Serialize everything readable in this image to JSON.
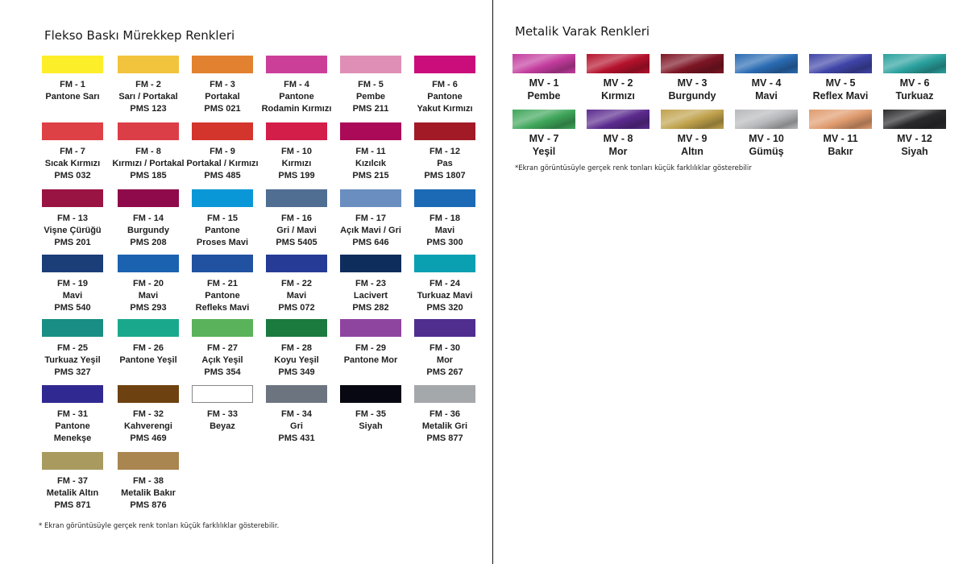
{
  "left_title": "Flekso Baskı Mürekkep Renkleri",
  "right_title": "Metalik Varak Renkleri",
  "left_note": "* Ekran görüntüsüyle gerçek renk tonları küçük farklılıklar gösterebilir.",
  "right_note": "*Ekran görüntüsüyle gerçek renk tonları küçük farklılıklar gösterebilir",
  "flexo_inks": [
    {
      "code": "FM - 1",
      "name": "Pantone Sarı",
      "pms": "",
      "color": "#fdee2a"
    },
    {
      "code": "FM - 2",
      "name": "Sarı / Portakal",
      "pms": "PMS 123",
      "color": "#f2c33c"
    },
    {
      "code": "FM - 3",
      "name": "Portakal",
      "pms": "PMS 021",
      "color": "#e2812f"
    },
    {
      "code": "FM - 4",
      "name": "Pantone",
      "name2": "Rodamin Kırmızı",
      "color": "#cc3f98"
    },
    {
      "code": "FM - 5",
      "name": "Pembe",
      "pms": "PMS 211",
      "color": "#df8fb6"
    },
    {
      "code": "FM - 6",
      "name": "Pantone",
      "name2": "Yakut Kırmızı",
      "color": "#ca0d7b"
    },
    {
      "code": "FM - 7",
      "name": "Sıcak Kırmızı",
      "pms": "PMS 032",
      "color": "#de4145"
    },
    {
      "code": "FM - 8",
      "name": "Kırmızı / Portakal",
      "pms": "PMS 185",
      "color": "#dc3e48"
    },
    {
      "code": "FM - 9",
      "name": "Portakal / Kırmızı",
      "pms": "PMS 485",
      "color": "#d3342c"
    },
    {
      "code": "FM - 10",
      "name": "Kırmızı",
      "pms": "PMS 199",
      "color": "#d41e4a"
    },
    {
      "code": "FM - 11",
      "name": "Kızılcık",
      "pms": "PMS 215",
      "color": "#ab0a58"
    },
    {
      "code": "FM - 12",
      "name": "Pas",
      "pms": "PMS 1807",
      "color": "#a11a26"
    },
    {
      "code": "FM - 13",
      "name": "Vişne Çürüğü",
      "pms": "PMS 201",
      "color": "#991442"
    },
    {
      "code": "FM - 14",
      "name": "Burgundy",
      "pms": "PMS 208",
      "color": "#8f0a4a"
    },
    {
      "code": "FM - 15",
      "name": "Pantone",
      "name2": "Proses Mavi",
      "color": "#0a97d7"
    },
    {
      "code": "FM - 16",
      "name": "Gri / Mavi",
      "pms": "PMS 5405",
      "color": "#4f6e91"
    },
    {
      "code": "FM - 17",
      "name": "Açık Mavi / Gri",
      "pms": "PMS 646",
      "color": "#6a8ebf"
    },
    {
      "code": "FM - 18",
      "name": "Mavi",
      "pms": "PMS 300",
      "color": "#1c6ab5"
    },
    {
      "code": "FM - 19",
      "name": "Mavi",
      "pms": "PMS 540",
      "color": "#1b3d78"
    },
    {
      "code": "FM - 20",
      "name": "Mavi",
      "pms": "PMS 293",
      "color": "#1b62b0"
    },
    {
      "code": "FM - 21",
      "name": "Pantone",
      "name2": "Refleks Mavi",
      "color": "#2152a1"
    },
    {
      "code": "FM - 22",
      "name": "Mavi",
      "pms": "PMS 072",
      "color": "#263b95"
    },
    {
      "code": "FM - 23",
      "name": "Lacivert",
      "pms": "PMS 282",
      "color": "#0f2d5c"
    },
    {
      "code": "FM - 24",
      "name": "Turkuaz Mavi",
      "pms": "PMS 320",
      "color": "#0aa0b2"
    },
    {
      "code": "FM - 25",
      "name": "Turkuaz Yeşil",
      "pms": "PMS 327",
      "color": "#188e85"
    },
    {
      "code": "FM - 26",
      "name": "Pantone Yeşil",
      "pms": "",
      "color": "#1aa88d"
    },
    {
      "code": "FM - 27",
      "name": "Açık Yeşil",
      "pms": "PMS 354",
      "color": "#5ab25a"
    },
    {
      "code": "FM - 28",
      "name": "Koyu Yeşil",
      "pms": "PMS 349",
      "color": "#1b7a3e"
    },
    {
      "code": "FM - 29",
      "name": "Pantone Mor",
      "pms": "",
      "color": "#8e45a0"
    },
    {
      "code": "FM - 30",
      "name": "Mor",
      "pms": "PMS 267",
      "color": "#4f2e90"
    },
    {
      "code": "FM - 31",
      "name": "Pantone",
      "name2": "Menekşe",
      "color": "#302991"
    },
    {
      "code": "FM - 32",
      "name": "Kahverengi",
      "pms": "PMS 469",
      "color": "#6e4210"
    },
    {
      "code": "FM - 33",
      "name": "Beyaz",
      "pms": "",
      "color": "#ffffff"
    },
    {
      "code": "FM - 34",
      "name": "Gri",
      "pms": "PMS 431",
      "color": "#6c757f"
    },
    {
      "code": "FM - 35",
      "name": "Siyah",
      "pms": "",
      "color": "#080812"
    },
    {
      "code": "FM - 36",
      "name": "Metalik Gri",
      "pms": "PMS 877",
      "color": "#a5a8ab"
    },
    {
      "code": "FM - 37",
      "name": "Metalik Altın",
      "pms": "PMS 871",
      "color": "#a99a60"
    },
    {
      "code": "FM - 38",
      "name": "Metalik Bakır",
      "pms": "PMS 876",
      "color": "#a98550"
    }
  ],
  "metallic_foils": [
    {
      "code": "MV - 1",
      "name": "Pembe",
      "color": "#c33c9e"
    },
    {
      "code": "MV - 2",
      "name": "Kırmızı",
      "color": "#b5122c"
    },
    {
      "code": "MV - 3",
      "name": "Burgundy",
      "color": "#7d1524"
    },
    {
      "code": "MV - 4",
      "name": "Mavi",
      "color": "#2a6bb3"
    },
    {
      "code": "MV - 5",
      "name": "Reflex Mavi",
      "color": "#3f45a8"
    },
    {
      "code": "MV - 6",
      "name": "Turkuaz",
      "color": "#2aa19e"
    },
    {
      "code": "MV - 7",
      "name": "Yeşil",
      "color": "#3fa65a"
    },
    {
      "code": "MV - 8",
      "name": "Mor",
      "color": "#5b2a8e"
    },
    {
      "code": "MV - 9",
      "name": "Altın",
      "color": "#c0a24c"
    },
    {
      "code": "MV - 10",
      "name": "Gümüş",
      "color": "#b8b9bc"
    },
    {
      "code": "MV - 11",
      "name": "Bakır",
      "color": "#e09b6e"
    },
    {
      "code": "MV - 12",
      "name": "Siyah",
      "color": "#2a2a2c"
    }
  ]
}
